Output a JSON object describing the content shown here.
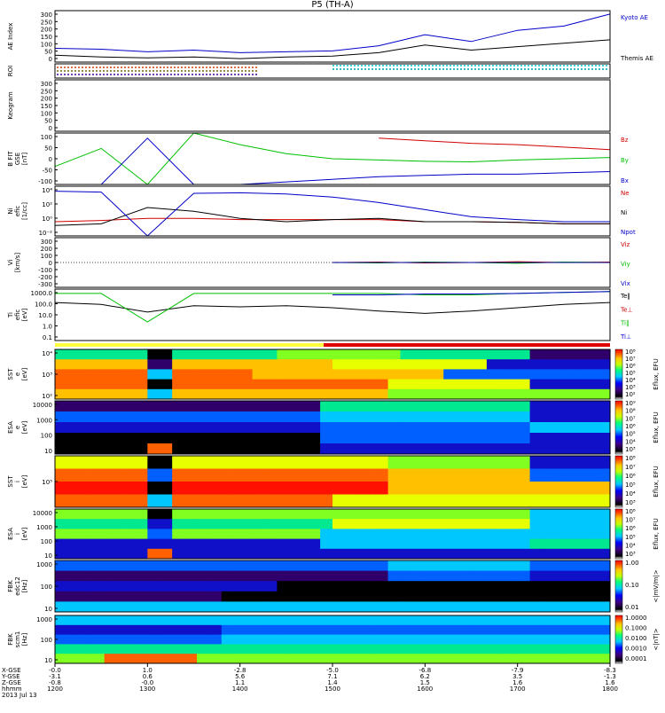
{
  "title": "P5 (TH-A)",
  "x_axis": {
    "row_labels": [
      "X-GSE",
      "Y-GSE",
      "Z-GSE",
      "hhmm",
      "2013 Jul 13"
    ],
    "ticks": [
      {
        "x_gse": "-0.0",
        "y_gse": "-3.1",
        "z_gse": "-0.8",
        "hhmm": "1200"
      },
      {
        "x_gse": "1.0",
        "y_gse": "0.6",
        "z_gse": "-0.0",
        "hhmm": "1300"
      },
      {
        "x_gse": "-2.8",
        "y_gse": "5.6",
        "z_gse": "1.1",
        "hhmm": "1400"
      },
      {
        "x_gse": "-5.0",
        "y_gse": "7.1",
        "z_gse": "1.4",
        "hhmm": "1500"
      },
      {
        "x_gse": "-6.8",
        "y_gse": "6.2",
        "z_gse": "1.5",
        "hhmm": "1600"
      },
      {
        "x_gse": "-7.9",
        "y_gse": "3.5",
        "z_gse": "1.6",
        "hhmm": "1700"
      },
      {
        "x_gse": "-8.3",
        "y_gse": "-1.3",
        "z_gse": "1.6",
        "hhmm": "1800"
      }
    ]
  },
  "panels": [
    {
      "id": "ae",
      "ylabel": "AE Index",
      "yticks": [
        "300",
        "250",
        "200",
        "150",
        "100",
        "50",
        "0"
      ],
      "legend": [
        {
          "text": "Kyoto AE",
          "color": "#0000c8"
        },
        {
          "text": "Themis AE",
          "color": "#000000"
        }
      ]
    },
    {
      "id": "roi",
      "ylabel": "ROI",
      "yticks": [],
      "legend": []
    },
    {
      "id": "keogram",
      "ylabel": "Keogram",
      "yticks": [
        "300",
        "250",
        "200",
        "150",
        "100",
        "50",
        "0"
      ],
      "legend": []
    },
    {
      "id": "bfield",
      "ylabel": "B FIT\nGSE\n[nT]",
      "yticks": [
        "100",
        "50",
        "0",
        "-50",
        "-100"
      ],
      "legend": [
        {
          "text": "Bz",
          "color": "#d00000"
        },
        {
          "text": "By",
          "color": "#00c000"
        },
        {
          "text": "Bx",
          "color": "#0000c8"
        }
      ]
    },
    {
      "id": "density",
      "ylabel": "Ni\nefic\n[1/cc]",
      "yticks": [
        "10⁴",
        "10²",
        "10⁰",
        "10⁻²"
      ],
      "legend": [
        {
          "text": "Ne",
          "color": "#d00000"
        },
        {
          "text": "Ni",
          "color": "#000000"
        },
        {
          "text": "Npot",
          "color": "#0000c8"
        }
      ]
    },
    {
      "id": "velocity",
      "ylabel": "Vi\n[km/s]",
      "yticks": [
        "300",
        "200",
        "100",
        "0",
        "-100",
        "-200",
        "-300"
      ],
      "legend": [
        {
          "text": "Viz",
          "color": "#d00000"
        },
        {
          "text": "Viy",
          "color": "#00c000"
        },
        {
          "text": "Vix",
          "color": "#0000c8"
        }
      ]
    },
    {
      "id": "temperature",
      "ylabel": "Ti\nefic\n[eV]",
      "yticks": [
        "1000.0",
        "100.0",
        "10.0",
        "1.0",
        "0.1"
      ],
      "legend": [
        {
          "text": "Te‖",
          "color": "#000000"
        },
        {
          "text": "Te⊥",
          "color": "#d00000"
        },
        {
          "text": "Ti‖",
          "color": "#00c000"
        },
        {
          "text": "Ti⊥",
          "color": "#0000c8"
        }
      ]
    },
    {
      "id": "sst_e",
      "ylabel": "SST\ne\n[eV]",
      "yticks": [
        "10⁴",
        "10³",
        "10²"
      ],
      "legend": [],
      "colorbar_label": "Eflux, EFU",
      "colorbar_ticks": [
        "10⁸",
        "10⁷",
        "10⁶",
        "10⁵",
        "10⁴",
        "10³",
        "10²"
      ]
    },
    {
      "id": "esa_e",
      "ylabel": "ESA\ne\n[eV]",
      "yticks": [
        "10000",
        "1000",
        "100",
        "10"
      ],
      "legend": [],
      "colorbar_label": "Eflux, EFU",
      "colorbar_ticks": [
        "10⁹",
        "10⁸",
        "10⁷",
        "10⁶",
        "10⁵",
        "10⁴",
        "10³"
      ]
    },
    {
      "id": "sst_i",
      "ylabel": "SST\ni\n[eV]",
      "yticks": [
        "10⁵"
      ],
      "legend": [],
      "colorbar_label": "Eflux, EFU",
      "colorbar_ticks": [
        "10⁸",
        "10⁷",
        "10⁶",
        "10⁵",
        "10⁴",
        "10³"
      ]
    },
    {
      "id": "esa_i",
      "ylabel": "ESA\ni\n[eV]",
      "yticks": [
        "10000",
        "1000",
        "100",
        "10"
      ],
      "legend": [],
      "colorbar_label": "Eflux, EFU",
      "colorbar_ticks": [
        "10⁸",
        "10⁷",
        "10⁶",
        "10⁵",
        "10⁴",
        "10³"
      ]
    },
    {
      "id": "fbk_edc",
      "ylabel": "FBK\nedc12\n[Hz]",
      "yticks": [
        "1000",
        "100",
        "10"
      ],
      "legend": [],
      "colorbar_label": "<|mV/m|>",
      "colorbar_ticks": [
        "1.00",
        "0.10",
        "0.01"
      ]
    },
    {
      "id": "fbk_scm",
      "ylabel": "FBK\nscm1\n[Hz]",
      "yticks": [
        "1000",
        "100",
        "10"
      ],
      "legend": [],
      "colorbar_label": "<|nT|>",
      "colorbar_ticks": [
        "1.0000",
        "0.1000",
        "0.0100",
        "0.0010",
        "0.0001"
      ]
    }
  ],
  "chart_data": {
    "type": "line",
    "title": "P5 (TH-A)",
    "x": [
      "1200",
      "1230",
      "1300",
      "1330",
      "1400",
      "1430",
      "1500",
      "1530",
      "1600",
      "1630",
      "1700",
      "1730",
      "1800"
    ],
    "panels": [
      {
        "name": "AE Index",
        "ylim": [
          0,
          300
        ],
        "series": [
          {
            "name": "Kyoto AE",
            "values": [
              80,
              75,
              60,
              70,
              55,
              60,
              65,
              95,
              160,
              120,
              185,
              210,
              280
            ]
          },
          {
            "name": "Themis AE",
            "values": [
              40,
              30,
              25,
              30,
              20,
              30,
              35,
              55,
              100,
              70,
              90,
              110,
              130
            ]
          }
        ]
      },
      {
        "name": "B FIT GSE [nT]",
        "ylim": [
          -100,
          100
        ],
        "series": [
          {
            "name": "Bz",
            "values": [
              null,
              null,
              null,
              null,
              null,
              null,
              null,
              80,
              70,
              60,
              55,
              45,
              35
            ]
          },
          {
            "name": "By",
            "values": [
              -30,
              40,
              -100,
              100,
              55,
              20,
              0,
              -5,
              -10,
              -12,
              -5,
              0,
              5
            ]
          },
          {
            "name": "Bx",
            "values": [
              -100,
              -100,
              80,
              -100,
              -100,
              -90,
              -80,
              -70,
              -65,
              -60,
              -60,
              -55,
              -50
            ]
          }
        ]
      },
      {
        "name": "Ni efic [1/cc]",
        "log": true,
        "ylim": [
          0.01,
          100000
        ],
        "series": [
          {
            "name": "Ne",
            "values": [
              1,
              1.5,
              3,
              3,
              2,
              2,
              2,
              2,
              1,
              1,
              0.8,
              0.5,
              0.5
            ]
          },
          {
            "name": "Ni",
            "values": [
              0.3,
              0.5,
              100,
              30,
              3,
              1,
              2,
              3,
              1,
              1,
              0.8,
              0.5,
              0.5
            ]
          },
          {
            "name": "Npot",
            "values": [
              20000,
              15000,
              0.01,
              10000,
              12000,
              8000,
              3000,
              500,
              50,
              5,
              2,
              1,
              1
            ]
          }
        ]
      },
      {
        "name": "Vi [km/s]",
        "ylim": [
          -300,
          300
        ],
        "series": [
          {
            "name": "Viz",
            "values": [
              null,
              null,
              null,
              null,
              null,
              null,
              0,
              5,
              -5,
              0,
              10,
              0,
              5
            ]
          },
          {
            "name": "Viy",
            "values": [
              null,
              null,
              null,
              null,
              null,
              null,
              0,
              -5,
              5,
              0,
              -10,
              5,
              0
            ]
          },
          {
            "name": "Vix",
            "values": [
              null,
              null,
              null,
              null,
              null,
              null,
              0,
              0,
              0,
              0,
              0,
              0,
              0
            ]
          }
        ]
      },
      {
        "name": "Ti efic [eV]",
        "log": true,
        "ylim": [
          0.1,
          5000
        ],
        "series": [
          {
            "name": "Te‖",
            "values": [
              300,
              200,
              40,
              150,
              120,
              150,
              100,
              50,
              30,
              50,
              100,
              200,
              300
            ]
          },
          {
            "name": "Ti‖",
            "values": [
              2000,
              2000,
              5,
              2000,
              2000,
              2000,
              2000,
              2000,
              1500,
              1500,
              2000,
              2500,
              3000
            ]
          },
          {
            "name": "Ti⊥",
            "values": [
              null,
              null,
              null,
              null,
              null,
              null,
              1500,
              1500,
              1800,
              1800,
              2000,
              2500,
              3000
            ]
          }
        ]
      }
    ]
  }
}
